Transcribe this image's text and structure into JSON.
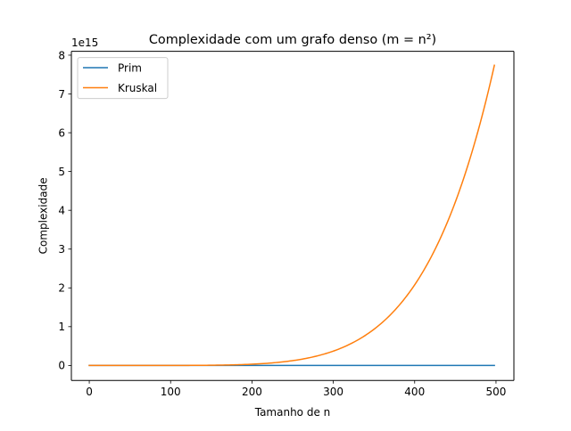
{
  "chart_data": {
    "type": "line",
    "title": "Complexidade com um grafo denso (m = n²)",
    "xlabel": "Tamanho de n",
    "ylabel": "Complexidade",
    "y_offset_label": "1e15",
    "xlim": [
      -22,
      522
    ],
    "ylim": [
      -0.386,
      8.1
    ],
    "x_ticks": [
      0,
      100,
      200,
      300,
      400,
      500
    ],
    "y_ticks": [
      0,
      1,
      2,
      3,
      4,
      5,
      6,
      7,
      8
    ],
    "grid": false,
    "legend_position": "upper left",
    "x": [
      0,
      50,
      100,
      150,
      200,
      250,
      300,
      350,
      400,
      450,
      498
    ],
    "series": [
      {
        "name": "Prim",
        "color": "#1f77b4",
        "values": [
          0,
          0,
          0,
          0,
          0,
          0,
          0,
          0,
          0,
          0,
          0
        ]
      },
      {
        "name": "Kruskal",
        "color": "#ff7f0e",
        "values": [
          0,
          0.0,
          0.0,
          0.02,
          0.06,
          0.15,
          0.36,
          0.89,
          2.14,
          4.46,
          7.74
        ]
      }
    ]
  }
}
